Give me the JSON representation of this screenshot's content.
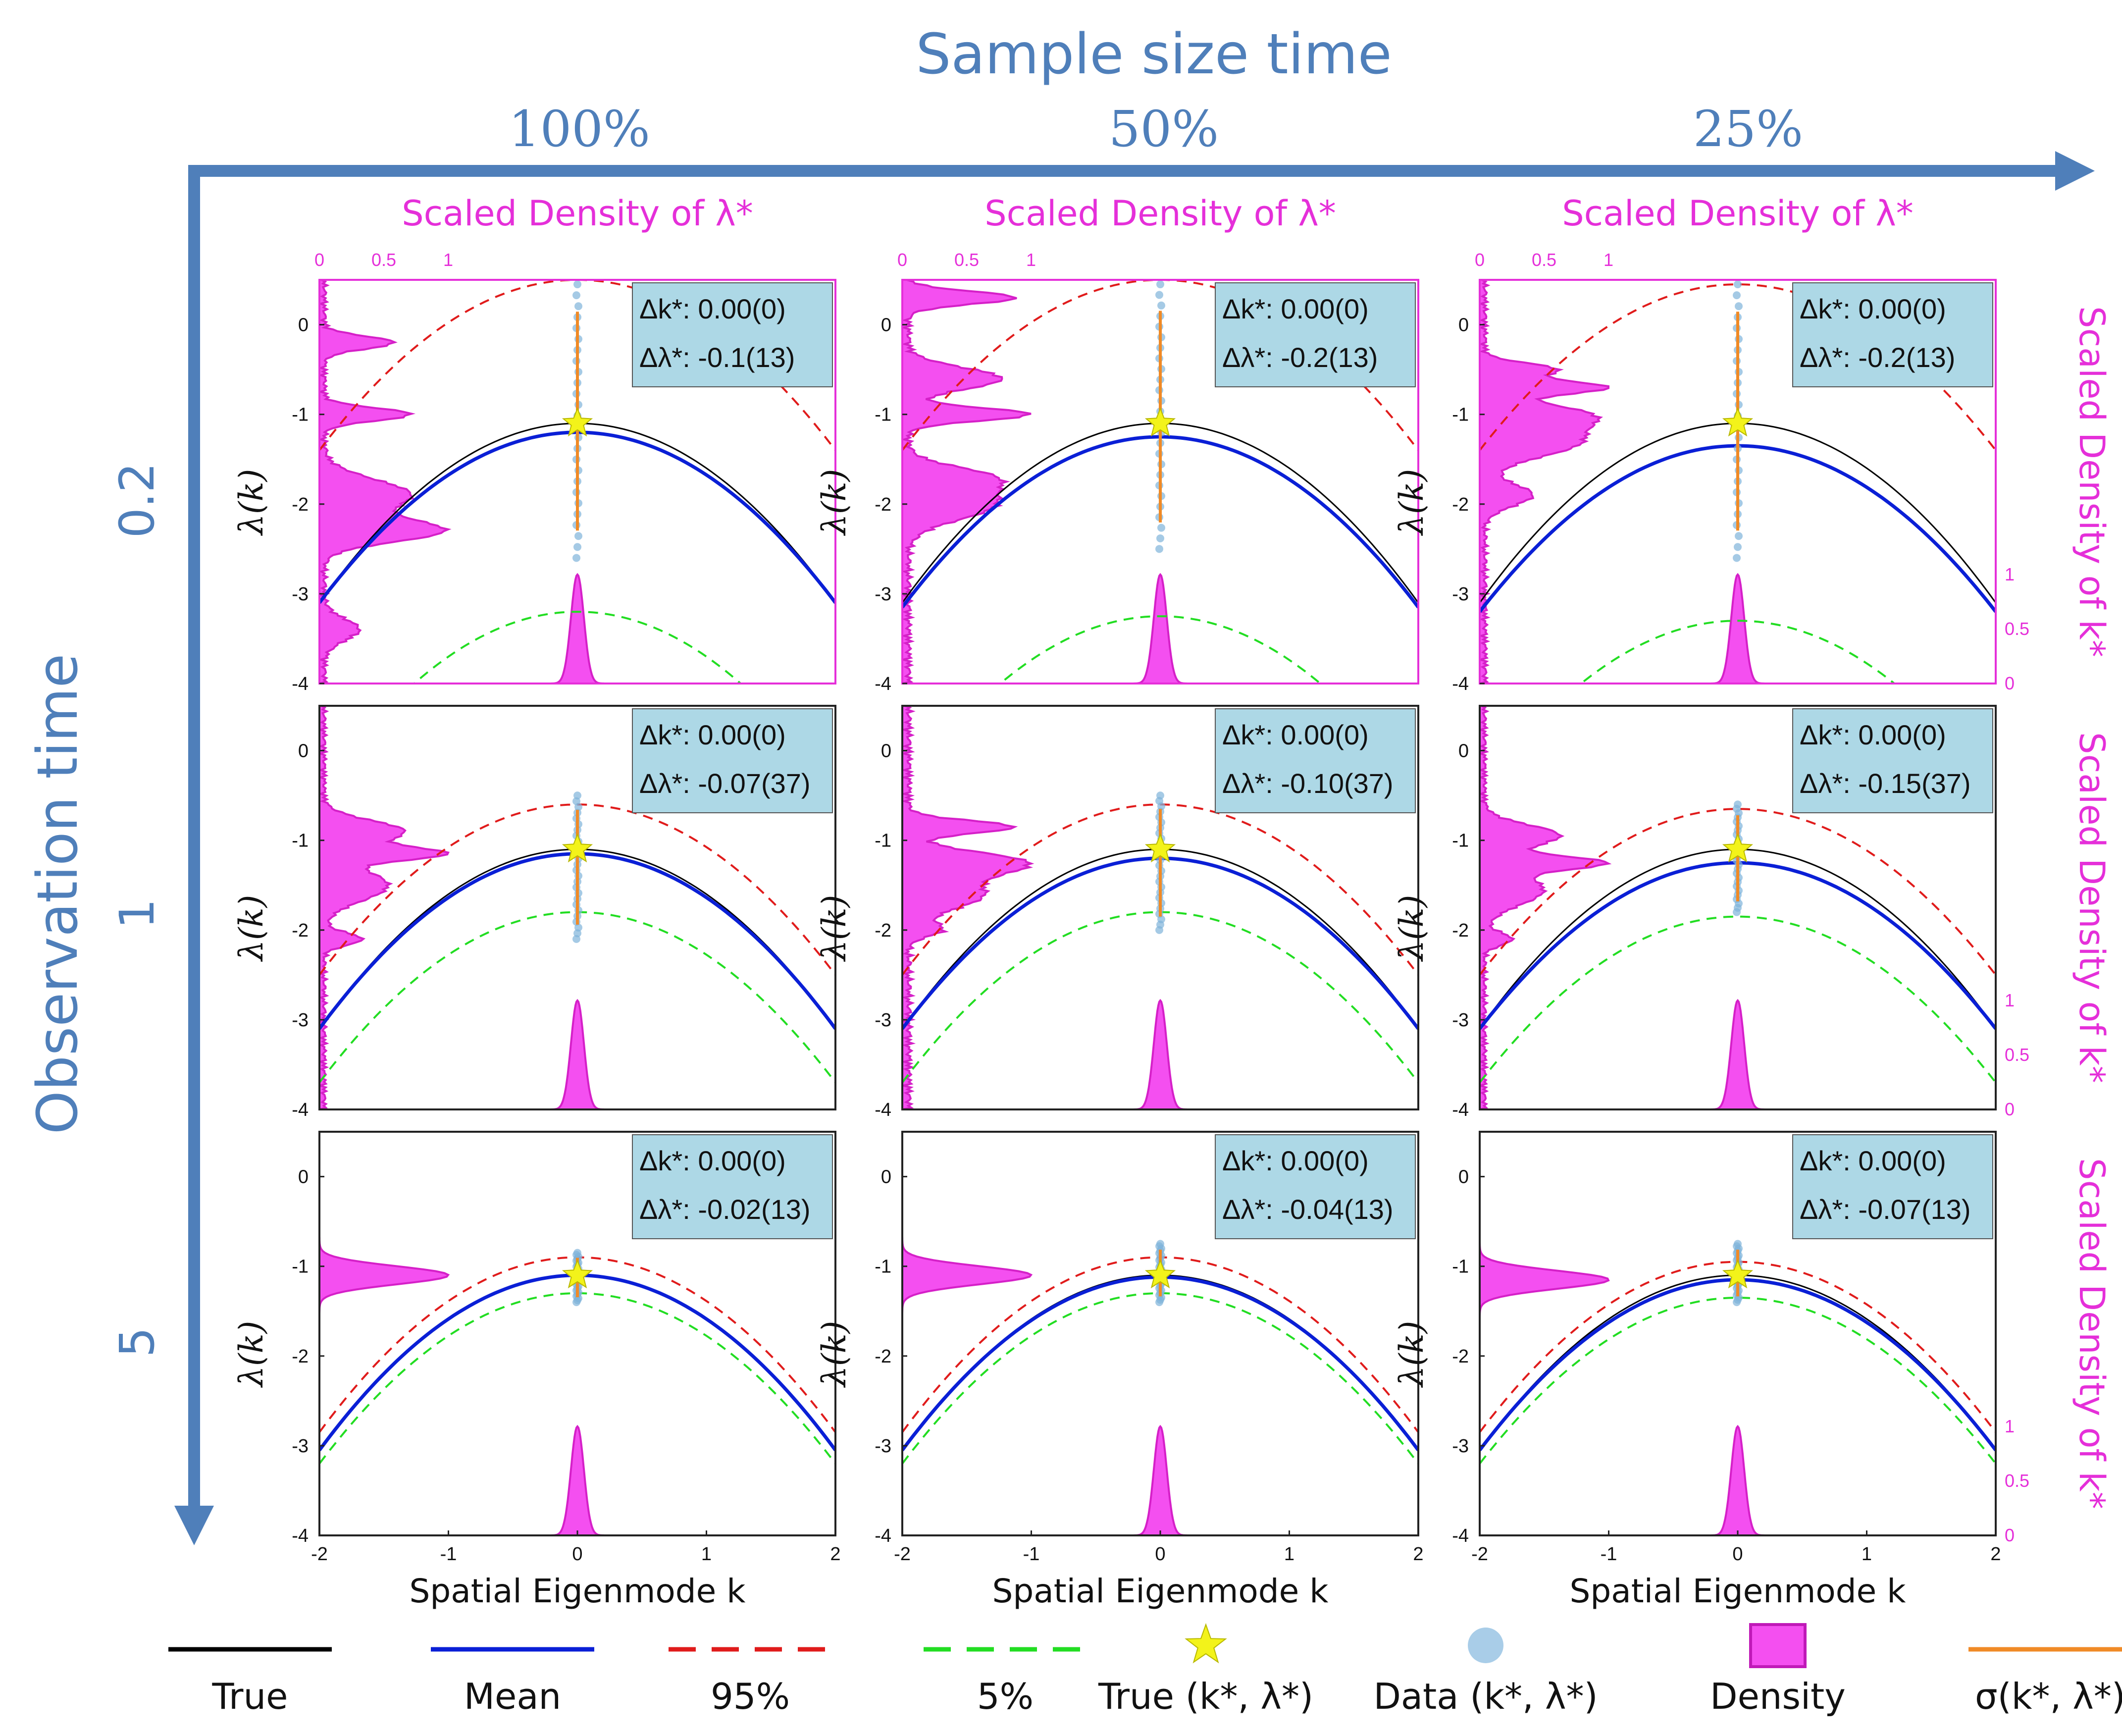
{
  "header": {
    "title": "Sample size time",
    "col_labels": [
      "100%",
      "50%",
      "25%"
    ],
    "row_title": "Observation time",
    "row_labels": [
      "0.2",
      "1",
      "5"
    ]
  },
  "axis_text": {
    "top_density_label": "Scaled Density of λ*",
    "right_density_label": "Scaled Density of k*",
    "xlabel": "Spatial Eigenmode k",
    "ylabel": "λ(k)",
    "density_ticks": [
      "0",
      "0.5",
      "1"
    ]
  },
  "legend": [
    {
      "label": "True",
      "color": "#000000",
      "style": "solid"
    },
    {
      "label": "Mean",
      "color": "#0a1fd6",
      "style": "solid"
    },
    {
      "label": "95%",
      "color": "#e01b1b",
      "style": "dashed"
    },
    {
      "label": "5%",
      "color": "#22dd22",
      "style": "dashed"
    },
    {
      "label": "True (k*, λ*)",
      "color": "#f3f31a",
      "style": "star"
    },
    {
      "label": "Data (k*, λ*)",
      "color": "#a9cde8",
      "style": "dot"
    },
    {
      "label": "Density",
      "color": "#f44ff0",
      "style": "patch"
    },
    {
      "label": "σ(k*, λ*)",
      "color": "#f08a26",
      "style": "solid"
    }
  ],
  "colors": {
    "accent_blue": "#4f7fba",
    "magenta": "#e52fd9",
    "density_fill": "#f44ff0",
    "annot_box": "#add8e6"
  },
  "chart_data": [
    {
      "type": "line",
      "row_label": "0.2",
      "col_label": "100%",
      "xlabel": "Spatial Eigenmode k",
      "ylabel": "λ(k)",
      "xlim": [
        -2,
        2
      ],
      "ylim": [
        -4,
        0.5
      ],
      "x_ticks": [
        -2,
        -1,
        0,
        1,
        2
      ],
      "y_ticks": [
        -4,
        -3,
        -2,
        -1,
        0
      ],
      "series": [
        {
          "name": "True",
          "peak": [
            0,
            -1.1
          ],
          "ends": -3.1
        },
        {
          "name": "Mean",
          "peak": [
            0,
            -1.2
          ],
          "ends": -3.1
        },
        {
          "name": "95%",
          "peak": [
            0,
            0.5
          ],
          "ends": -1.4
        },
        {
          "name": "5%",
          "peak": [
            0,
            -3.2
          ],
          "ends": -5.2
        }
      ],
      "true_point": [
        0,
        -1.1
      ],
      "data_range_lambda": [
        -2.6,
        0.45
      ],
      "annotation": {
        "dk": "Δk*: 0.00(0)",
        "dl": "Δλ*: -0.1(13)"
      },
      "lambda_density_peaks": [
        [
          -1.0,
          0.75
        ],
        [
          -2.3,
          1.0
        ],
        [
          -1.9,
          0.75
        ],
        [
          -0.2,
          0.6
        ],
        [
          -3.4,
          0.3
        ]
      ],
      "k_density_sigma": 0.05
    },
    {
      "type": "line",
      "row_label": "0.2",
      "col_label": "50%",
      "xlabel": "Spatial Eigenmode k",
      "ylabel": "λ(k)",
      "xlim": [
        -2,
        2
      ],
      "ylim": [
        -4,
        0.5
      ],
      "x_ticks": [
        -2,
        -1,
        0,
        1,
        2
      ],
      "y_ticks": [
        -4,
        -3,
        -2,
        -1,
        0
      ],
      "series": [
        {
          "name": "True",
          "peak": [
            0,
            -1.1
          ],
          "ends": -3.1
        },
        {
          "name": "Mean",
          "peak": [
            0,
            -1.25
          ],
          "ends": -3.15
        },
        {
          "name": "95%",
          "peak": [
            0,
            0.5
          ],
          "ends": -1.4
        },
        {
          "name": "5%",
          "peak": [
            0,
            -3.25
          ],
          "ends": -5.2
        }
      ],
      "true_point": [
        0,
        -1.1
      ],
      "data_range_lambda": [
        -2.5,
        0.45
      ],
      "annotation": {
        "dk": "Δk*: 0.00(0)",
        "dl": "Δλ*: -0.2(13)"
      },
      "lambda_density_peaks": [
        [
          -1.0,
          0.85
        ],
        [
          -0.6,
          0.65
        ],
        [
          -2.0,
          0.6
        ],
        [
          0.3,
          0.75
        ],
        [
          -1.7,
          0.5
        ]
      ],
      "k_density_sigma": 0.05
    },
    {
      "type": "line",
      "row_label": "0.2",
      "col_label": "25%",
      "xlabel": "Spatial Eigenmode k",
      "ylabel": "λ(k)",
      "xlim": [
        -2,
        2
      ],
      "ylim": [
        -4,
        0.5
      ],
      "x_ticks": [
        -2,
        -1,
        0,
        1,
        2
      ],
      "y_ticks": [
        -4,
        -3,
        -2,
        -1,
        0
      ],
      "series": [
        {
          "name": "True",
          "peak": [
            0,
            -1.1
          ],
          "ends": -3.1
        },
        {
          "name": "Mean",
          "peak": [
            0,
            -1.35
          ],
          "ends": -3.2
        },
        {
          "name": "95%",
          "peak": [
            0,
            0.45
          ],
          "ends": -1.4
        },
        {
          "name": "5%",
          "peak": [
            0,
            -3.3
          ],
          "ends": -5.2
        }
      ],
      "true_point": [
        0,
        -1.1
      ],
      "data_range_lambda": [
        -2.6,
        0.45
      ],
      "annotation": {
        "dk": "Δk*: 0.00(0)",
        "dl": "Δλ*: -0.2(13)"
      },
      "lambda_density_peaks": [
        [
          -0.7,
          1.0
        ],
        [
          -1.0,
          0.75
        ],
        [
          -1.3,
          0.8
        ],
        [
          -0.5,
          0.6
        ],
        [
          -1.9,
          0.4
        ]
      ],
      "k_density_sigma": 0.05
    },
    {
      "type": "line",
      "row_label": "1",
      "col_label": "100%",
      "xlabel": "Spatial Eigenmode k",
      "ylabel": "λ(k)",
      "xlim": [
        -2,
        2
      ],
      "ylim": [
        -4,
        0.5
      ],
      "x_ticks": [
        -2,
        -1,
        0,
        1,
        2
      ],
      "y_ticks": [
        -4,
        -3,
        -2,
        -1,
        0
      ],
      "series": [
        {
          "name": "True",
          "peak": [
            0,
            -1.1
          ],
          "ends": -3.1
        },
        {
          "name": "Mean",
          "peak": [
            0,
            -1.15
          ],
          "ends": -3.1
        },
        {
          "name": "95%",
          "peak": [
            0,
            -0.6
          ],
          "ends": -2.5
        },
        {
          "name": "5%",
          "peak": [
            0,
            -1.8
          ],
          "ends": -3.7
        }
      ],
      "true_point": [
        0,
        -1.1
      ],
      "data_range_lambda": [
        -2.1,
        -0.5
      ],
      "annotation": {
        "dk": "Δk*: 0.00(0)",
        "dl": "Δλ*: -0.07(37)"
      },
      "lambda_density_peaks": [
        [
          -1.15,
          1.0
        ],
        [
          -0.9,
          0.75
        ],
        [
          -1.5,
          0.6
        ],
        [
          -2.1,
          0.35
        ]
      ],
      "k_density_sigma": 0.05
    },
    {
      "type": "line",
      "row_label": "1",
      "col_label": "50%",
      "xlabel": "Spatial Eigenmode k",
      "ylabel": "λ(k)",
      "xlim": [
        -2,
        2
      ],
      "ylim": [
        -4,
        0.5
      ],
      "x_ticks": [
        -2,
        -1,
        0,
        1,
        2
      ],
      "y_ticks": [
        -4,
        -3,
        -2,
        -1,
        0
      ],
      "series": [
        {
          "name": "True",
          "peak": [
            0,
            -1.1
          ],
          "ends": -3.1
        },
        {
          "name": "Mean",
          "peak": [
            0,
            -1.2
          ],
          "ends": -3.1
        },
        {
          "name": "95%",
          "peak": [
            0,
            -0.6
          ],
          "ends": -2.5
        },
        {
          "name": "5%",
          "peak": [
            0,
            -1.8
          ],
          "ends": -3.7
        }
      ],
      "true_point": [
        0,
        -1.1
      ],
      "data_range_lambda": [
        -2.0,
        -0.5
      ],
      "annotation": {
        "dk": "Δk*: 0.00(0)",
        "dl": "Δλ*: -0.10(37)"
      },
      "lambda_density_peaks": [
        [
          -0.85,
          0.7
        ],
        [
          -1.25,
          0.75
        ],
        [
          -1.6,
          0.5
        ],
        [
          -2.0,
          0.2
        ]
      ],
      "k_density_sigma": 0.05
    },
    {
      "type": "line",
      "row_label": "1",
      "col_label": "25%",
      "xlabel": "Spatial Eigenmode k",
      "ylabel": "λ(k)",
      "xlim": [
        -2,
        2
      ],
      "ylim": [
        -4,
        0.5
      ],
      "x_ticks": [
        -2,
        -1,
        0,
        1,
        2
      ],
      "y_ticks": [
        -4,
        -3,
        -2,
        -1,
        0
      ],
      "series": [
        {
          "name": "True",
          "peak": [
            0,
            -1.1
          ],
          "ends": -3.1
        },
        {
          "name": "Mean",
          "peak": [
            0,
            -1.25
          ],
          "ends": -3.1
        },
        {
          "name": "95%",
          "peak": [
            0,
            -0.65
          ],
          "ends": -2.5
        },
        {
          "name": "5%",
          "peak": [
            0,
            -1.85
          ],
          "ends": -3.7
        }
      ],
      "true_point": [
        0,
        -1.1
      ],
      "data_range_lambda": [
        -1.8,
        -0.6
      ],
      "annotation": {
        "dk": "Δk*: 0.00(0)",
        "dl": "Δλ*: -0.15(37)"
      },
      "lambda_density_peaks": [
        [
          -1.25,
          1.0
        ],
        [
          -0.95,
          0.7
        ],
        [
          -1.55,
          0.55
        ],
        [
          -2.1,
          0.25
        ]
      ],
      "k_density_sigma": 0.05
    },
    {
      "type": "line",
      "row_label": "5",
      "col_label": "100%",
      "xlabel": "Spatial Eigenmode k",
      "ylabel": "λ(k)",
      "xlim": [
        -2,
        2
      ],
      "ylim": [
        -4,
        0.5
      ],
      "x_ticks": [
        -2,
        -1,
        0,
        1,
        2
      ],
      "y_ticks": [
        -4,
        -3,
        -2,
        -1,
        0
      ],
      "series": [
        {
          "name": "True",
          "peak": [
            0,
            -1.1
          ],
          "ends": -3.05
        },
        {
          "name": "Mean",
          "peak": [
            0,
            -1.1
          ],
          "ends": -3.05
        },
        {
          "name": "95%",
          "peak": [
            0,
            -0.9
          ],
          "ends": -2.85
        },
        {
          "name": "5%",
          "peak": [
            0,
            -1.3
          ],
          "ends": -3.2
        }
      ],
      "true_point": [
        0,
        -1.1
      ],
      "data_range_lambda": [
        -1.4,
        -0.85
      ],
      "annotation": {
        "dk": "Δk*: 0.00(0)",
        "dl": "Δλ*: -0.02(13)"
      },
      "lambda_density_peaks": [
        [
          -1.1,
          1.0
        ]
      ],
      "k_density_sigma": 0.05
    },
    {
      "type": "line",
      "row_label": "5",
      "col_label": "50%",
      "xlabel": "Spatial Eigenmode k",
      "ylabel": "λ(k)",
      "xlim": [
        -2,
        2
      ],
      "ylim": [
        -4,
        0.5
      ],
      "x_ticks": [
        -2,
        -1,
        0,
        1,
        2
      ],
      "y_ticks": [
        -4,
        -3,
        -2,
        -1,
        0
      ],
      "series": [
        {
          "name": "True",
          "peak": [
            0,
            -1.1
          ],
          "ends": -3.05
        },
        {
          "name": "Mean",
          "peak": [
            0,
            -1.12
          ],
          "ends": -3.05
        },
        {
          "name": "95%",
          "peak": [
            0,
            -0.9
          ],
          "ends": -2.85
        },
        {
          "name": "5%",
          "peak": [
            0,
            -1.3
          ],
          "ends": -3.2
        }
      ],
      "true_point": [
        0,
        -1.1
      ],
      "data_range_lambda": [
        -1.4,
        -0.75
      ],
      "annotation": {
        "dk": "Δk*: 0.00(0)",
        "dl": "Δλ*: -0.04(13)"
      },
      "lambda_density_peaks": [
        [
          -1.1,
          1.0
        ]
      ],
      "k_density_sigma": 0.05
    },
    {
      "type": "line",
      "row_label": "5",
      "col_label": "25%",
      "xlabel": "Spatial Eigenmode k",
      "ylabel": "λ(k)",
      "xlim": [
        -2,
        2
      ],
      "ylim": [
        -4,
        0.5
      ],
      "x_ticks": [
        -2,
        -1,
        0,
        1,
        2
      ],
      "y_ticks": [
        -4,
        -3,
        -2,
        -1,
        0
      ],
      "series": [
        {
          "name": "True",
          "peak": [
            0,
            -1.1
          ],
          "ends": -3.05
        },
        {
          "name": "Mean",
          "peak": [
            0,
            -1.15
          ],
          "ends": -3.05
        },
        {
          "name": "95%",
          "peak": [
            0,
            -0.95
          ],
          "ends": -2.85
        },
        {
          "name": "5%",
          "peak": [
            0,
            -1.35
          ],
          "ends": -3.2
        }
      ],
      "true_point": [
        0,
        -1.1
      ],
      "data_range_lambda": [
        -1.4,
        -0.75
      ],
      "annotation": {
        "dk": "Δk*: 0.00(0)",
        "dl": "Δλ*: -0.07(13)"
      },
      "lambda_density_peaks": [
        [
          -1.15,
          1.0
        ]
      ],
      "k_density_sigma": 0.05
    }
  ]
}
